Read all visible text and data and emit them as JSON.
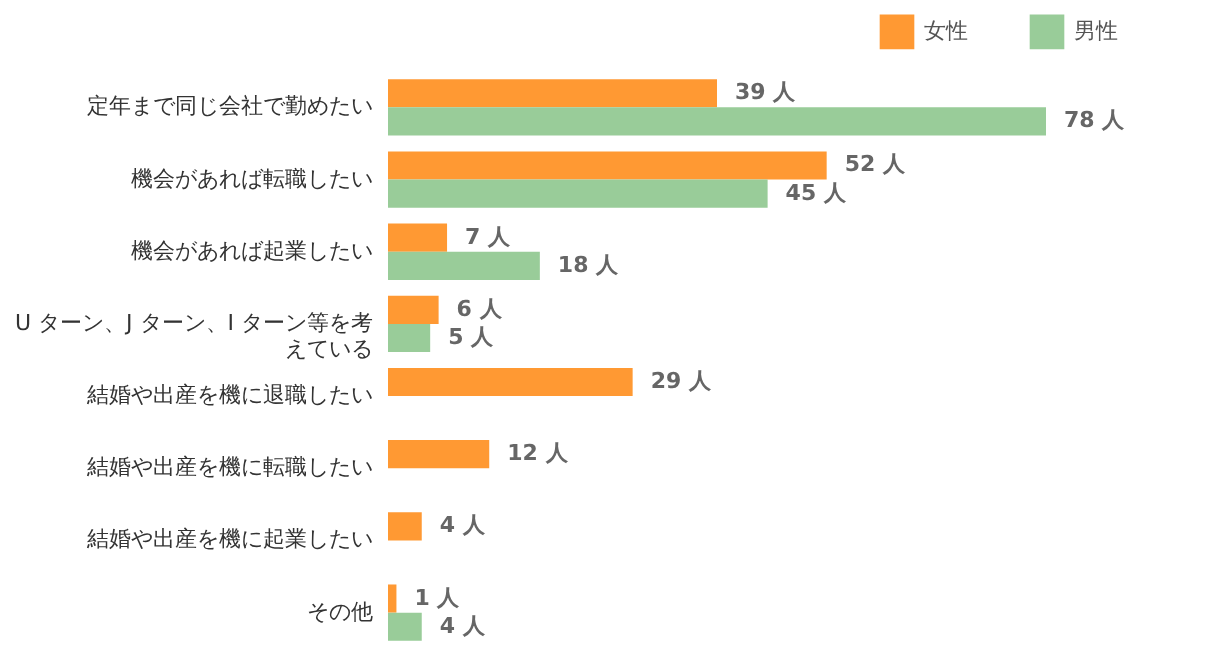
{
  "chart_data": {
    "type": "bar",
    "orientation": "horizontal",
    "legend": "top right",
    "categories": [
      "定年まで同じ会社で勤めたい",
      "機会があれば転職したい",
      "機会があれば起業したい",
      "U ターン、J ターン、I ターン等を考えている",
      "結婚や出産を機に退職したい",
      "結婚や出産を機に転職したい",
      "結婚や出産を機に起業したい",
      "その他"
    ],
    "series": [
      {
        "name": "女性",
        "color": "#ff9933",
        "values": [
          39,
          52,
          7,
          6,
          29,
          12,
          4,
          1
        ],
        "value_labels": [
          "39 人",
          "52 人",
          "7 人",
          "6 人",
          "29 人",
          "12 人",
          "4 人",
          "1 人"
        ]
      },
      {
        "name": "男性",
        "color": "#99cc99",
        "values": [
          78,
          45,
          18,
          5,
          null,
          null,
          null,
          4
        ],
        "value_labels": [
          "78 人",
          "45 人",
          "18 人",
          "5 人",
          null,
          null,
          null,
          "4 人"
        ]
      }
    ]
  }
}
